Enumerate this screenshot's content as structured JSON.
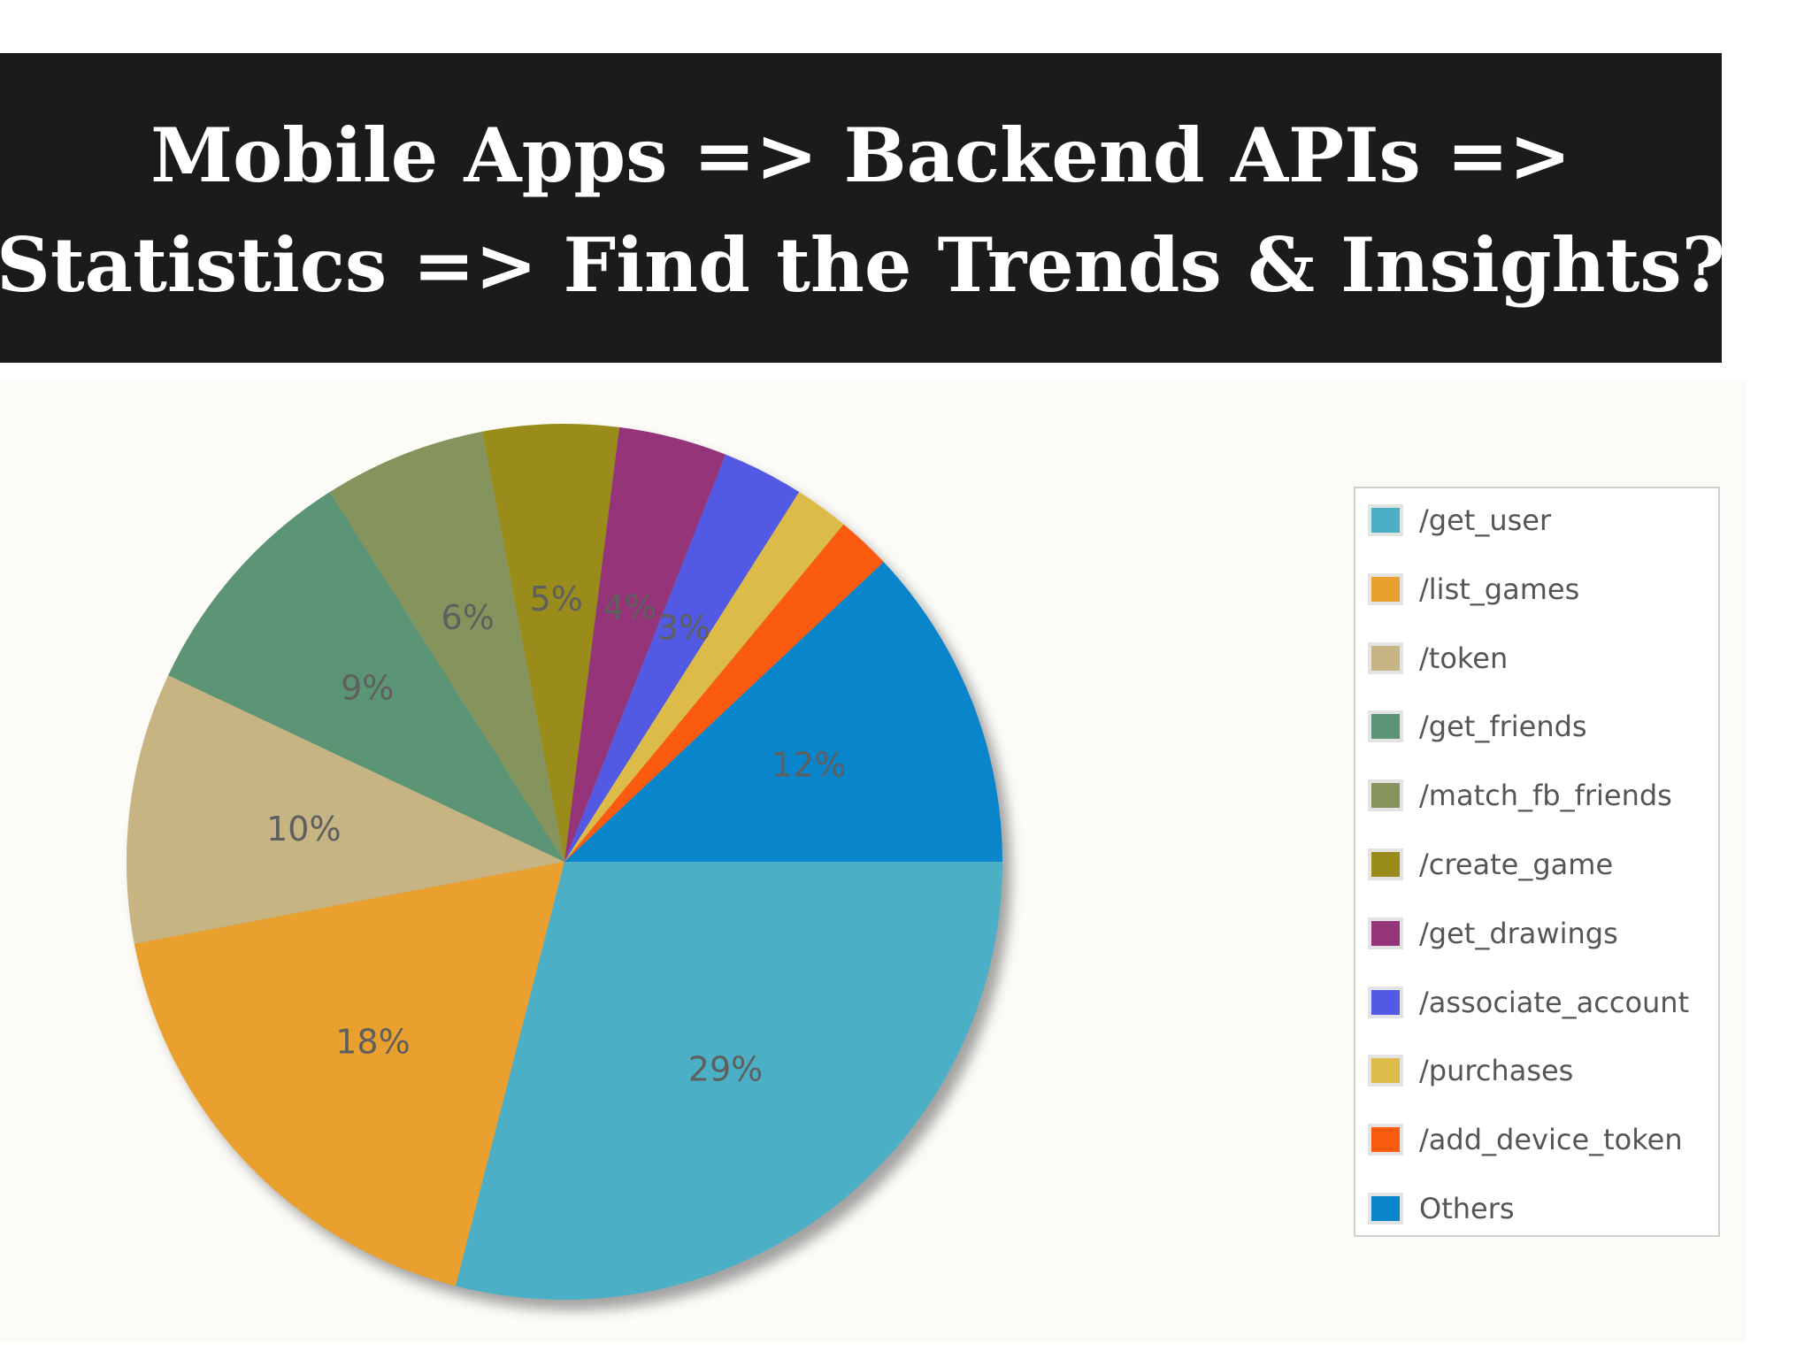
{
  "banner": {
    "line1": "Mobile Apps => Backend APIs =>",
    "line2": "Statistics => Find the Trends & Insights?"
  },
  "chart_data": {
    "type": "pie",
    "title": "",
    "start_angle_deg": 0,
    "direction": "clockwise",
    "shadow": true,
    "legend_position": "right",
    "slices": [
      {
        "name": "/get_user",
        "value": 29,
        "label": "29%",
        "color": "#4bb0c6"
      },
      {
        "name": "/list_games",
        "value": 18,
        "label": "18%",
        "color": "#eaa02e"
      },
      {
        "name": "/token",
        "value": 10,
        "label": "10%",
        "color": "#c6b483"
      },
      {
        "name": "/get_friends",
        "value": 9,
        "label": "9%",
        "color": "#5c9576"
      },
      {
        "name": "/match_fb_friends",
        "value": 6,
        "label": "6%",
        "color": "#84945c"
      },
      {
        "name": "/create_game",
        "value": 5,
        "label": "5%",
        "color": "#9a8c1a"
      },
      {
        "name": "/get_drawings",
        "value": 4,
        "label": "4%",
        "color": "#953479"
      },
      {
        "name": "/associate_account",
        "value": 3,
        "label": "3%",
        "color": "#525ae3"
      },
      {
        "name": "/purchases",
        "value": 2,
        "label": "",
        "color": "#dcbb48"
      },
      {
        "name": "/add_device_token",
        "value": 2,
        "label": "",
        "color": "#fa5b0f"
      },
      {
        "name": "Others",
        "value": 12,
        "label": "12%",
        "color": "#0985cc"
      }
    ]
  }
}
